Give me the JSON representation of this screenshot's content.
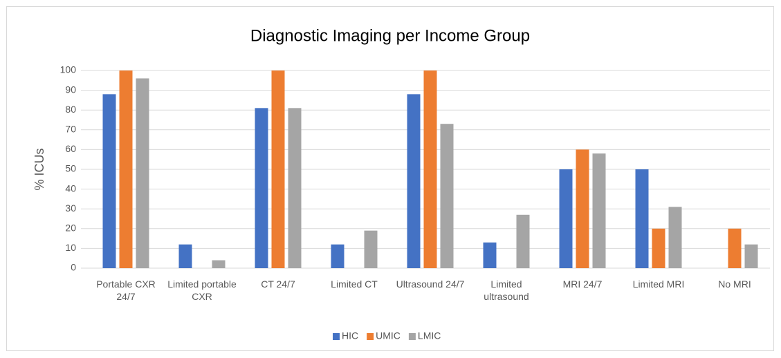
{
  "chart_data": {
    "type": "bar",
    "title": "Diagnostic Imaging per Income Group",
    "ylabel": "% ICUs",
    "categories": [
      "Portable CXR 24/7",
      "Limited portable CXR",
      "CT 24/7",
      "Limited CT",
      "Ultrasound 24/7",
      "Limited ultrasound",
      "MRI 24/7",
      "Limited MRI",
      "No MRI"
    ],
    "series": [
      {
        "name": "HIC",
        "color": "#4472c4",
        "values": [
          88,
          12,
          81,
          12,
          88,
          13,
          50,
          50,
          0
        ]
      },
      {
        "name": "UMIC",
        "color": "#ed7d31",
        "values": [
          100,
          0,
          100,
          0,
          100,
          0,
          60,
          20,
          20
        ]
      },
      {
        "name": "LMIC",
        "color": "#a5a5a5",
        "values": [
          96,
          4,
          81,
          19,
          73,
          27,
          58,
          31,
          12
        ]
      }
    ],
    "ylim": [
      0,
      100
    ],
    "yticks": [
      0,
      10,
      20,
      30,
      40,
      50,
      60,
      70,
      80,
      90,
      100
    ],
    "grid": true,
    "legend": "bottom"
  }
}
